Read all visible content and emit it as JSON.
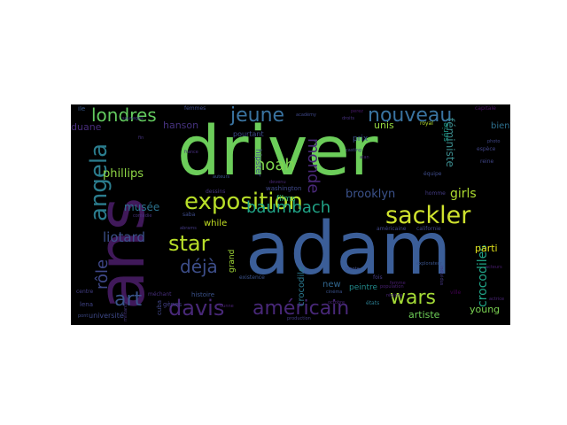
{
  "wordcloud": {
    "background": "#000000",
    "words": [
      {
        "text": "adam",
        "color": "#3b5e98"
      },
      {
        "text": "driver",
        "color": "#6ccd5a"
      },
      {
        "text": "ans",
        "color": "#40195a"
      },
      {
        "text": "exposition",
        "color": "#b8de29"
      },
      {
        "text": "sackler",
        "color": "#cfe22e"
      },
      {
        "text": "nouveau",
        "color": "#3a74a1"
      },
      {
        "text": "davis",
        "color": "#482878"
      },
      {
        "text": "américain",
        "color": "#482878"
      },
      {
        "text": "star",
        "color": "#b8de29"
      },
      {
        "text": "angela",
        "color": "#2b7d8e"
      },
      {
        "text": "jeune",
        "color": "#3a74a1"
      },
      {
        "text": "wars",
        "color": "#a5db36"
      },
      {
        "text": "londres",
        "color": "#63cb5f"
      },
      {
        "text": "noah",
        "color": "#7fd34e"
      },
      {
        "text": "baumbach",
        "color": "#20a386"
      },
      {
        "text": "art",
        "color": "#3a548c"
      },
      {
        "text": "déjà",
        "color": "#3d4e8a"
      },
      {
        "text": "monde",
        "color": "#482878"
      },
      {
        "text": "rôle",
        "color": "#3f4889"
      },
      {
        "text": "crocodiles",
        "color": "#20a386"
      },
      {
        "text": "liotard",
        "color": "#3c508b"
      },
      {
        "text": "brooklyn",
        "color": "#3b528b"
      },
      {
        "text": "girls",
        "color": "#addc30"
      },
      {
        "text": "féministe",
        "color": "#3b8a8c"
      },
      {
        "text": "phillips",
        "color": "#8ed645"
      },
      {
        "text": "musée",
        "color": "#2c728e"
      },
      {
        "text": "hanson",
        "color": "#46327e"
      },
      {
        "text": "duane",
        "color": "#472c7a"
      },
      {
        "text": "unis",
        "color": "#95d840"
      },
      {
        "text": "while",
        "color": "#c2df23"
      },
      {
        "text": "parti",
        "color": "#e1e11b"
      },
      {
        "text": "young",
        "color": "#7ad151"
      },
      {
        "text": "artiste",
        "color": "#6ece58"
      },
      {
        "text": "crocodile",
        "color": "#2a788e"
      },
      {
        "text": "new",
        "color": "#31668e"
      },
      {
        "text": "peintre",
        "color": "#228c8d"
      },
      {
        "text": "films",
        "color": "#35b779"
      },
      {
        "text": "hipster",
        "color": "#3e4c8a"
      },
      {
        "text": "grand",
        "color": "#a2da37"
      },
      {
        "text": "série",
        "color": "#1e9b8a"
      },
      {
        "text": "prix",
        "color": "#3b528b"
      },
      {
        "text": "bien",
        "color": "#2d708e"
      },
      {
        "text": "pourtant",
        "color": "#3e4a89"
      },
      {
        "text": "washington",
        "color": "#3f4889"
      },
      {
        "text": "université",
        "color": "#3e4989"
      },
      {
        "text": "cuba",
        "color": "#404688"
      },
      {
        "text": "gènes",
        "color": "#423f85"
      },
      {
        "text": "histoire",
        "color": "#3b528b"
      },
      {
        "text": "lena",
        "color": "#414487"
      },
      {
        "text": "centre",
        "color": "#433e85"
      },
      {
        "text": "dessins",
        "color": "#46337e"
      },
      {
        "text": "saba",
        "color": "#3e4c8a"
      },
      {
        "text": "états",
        "color": "#2a7b8e"
      },
      {
        "text": "équipe",
        "color": "#3e4c8a"
      },
      {
        "text": "royal",
        "color": "#b5de2b"
      },
      {
        "text": "existence",
        "color": "#3b528b"
      },
      {
        "text": "méchant",
        "color": "#472f7d"
      },
      {
        "text": "fois",
        "color": "#443a83"
      },
      {
        "text": "américaine",
        "color": "#404688"
      },
      {
        "text": "californie",
        "color": "#404688"
      },
      {
        "text": "ile",
        "color": "#38598c"
      },
      {
        "text": "femmes",
        "color": "#3e4a89"
      },
      {
        "text": "capitale",
        "color": "#471063"
      },
      {
        "text": "reine",
        "color": "#404688"
      },
      {
        "text": "espèce",
        "color": "#414487"
      },
      {
        "text": "ville",
        "color": "#440154"
      },
      {
        "text": "homme",
        "color": "#443b84"
      },
      {
        "text": "femme",
        "color": "#481d6f"
      },
      {
        "text": "explorateur",
        "color": "#3a538b"
      },
      {
        "text": "individus",
        "color": "#453781"
      },
      {
        "text": "population",
        "color": "#482071"
      },
      {
        "text": "octobre",
        "color": "#482475"
      },
      {
        "text": "production",
        "color": "#433d84"
      },
      {
        "text": "cinéma",
        "color": "#3b528b"
      },
      {
        "text": "abrams",
        "color": "#443a83"
      },
      {
        "text": "comédie",
        "color": "#46327e"
      },
      {
        "text": "devenu",
        "color": "#482878"
      },
      {
        "text": "casting",
        "color": "#3f4788"
      },
      {
        "text": "actrice",
        "color": "#482475"
      },
      {
        "text": "photo",
        "color": "#404688"
      },
      {
        "text": "sauvages",
        "color": "#433e85"
      },
      {
        "text": "fin",
        "color": "#46337e"
      },
      {
        "text": "france",
        "color": "#472d7b"
      },
      {
        "text": "alan",
        "color": "#482576"
      },
      {
        "text": "acteurs",
        "color": "#481c6e"
      },
      {
        "text": "pont",
        "color": "#3e4a89"
      },
      {
        "text": "dunne",
        "color": "#482173"
      },
      {
        "text": "droits",
        "color": "#46307e"
      },
      {
        "text": "perez",
        "color": "#481769"
      },
      {
        "text": "militante",
        "color": "#46337e"
      },
      {
        "text": "académy",
        "color": "#3f4889"
      },
      {
        "text": "auteurs",
        "color": "#3a548c"
      },
      {
        "text": "régions",
        "color": "#482475"
      },
      {
        "text": "plante",
        "color": "#3e4c8a"
      }
    ]
  }
}
